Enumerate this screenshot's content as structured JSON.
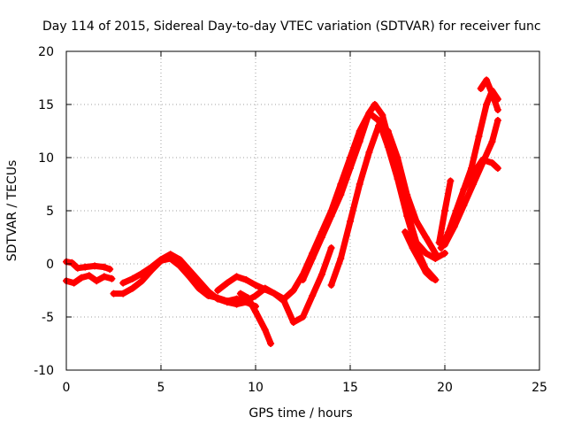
{
  "chart_data": {
    "type": "scatter",
    "title": "Day 114 of 2015, Sidereal Day-to-day VTEC variation (SDTVAR) for receiver func",
    "xlabel": "GPS time / hours",
    "ylabel": "SDTVAR / TECUs",
    "xlim": [
      0,
      25
    ],
    "ylim": [
      -10,
      20
    ],
    "x_ticks": [
      0,
      5,
      10,
      15,
      20,
      25
    ],
    "y_ticks": [
      -10,
      -5,
      0,
      5,
      10,
      15,
      20
    ],
    "x_tick_labels": [
      "0",
      "5",
      "10",
      "15",
      "20",
      "25"
    ],
    "y_tick_labels": [
      "-10",
      "-5",
      "0",
      "5",
      "10",
      "15",
      "20"
    ],
    "grid": true,
    "marker": "plus",
    "series_color": "#ff0000",
    "series": [
      {
        "x": [
          0.0,
          0.3,
          0.6,
          1.0,
          1.5,
          2.0,
          2.3
        ],
        "y": [
          0.2,
          0.1,
          -0.4,
          -0.3,
          -0.2,
          -0.3,
          -0.5
        ]
      },
      {
        "x": [
          0.0,
          0.4,
          0.8,
          1.2,
          1.6,
          2.0,
          2.4
        ],
        "y": [
          -1.6,
          -1.8,
          -1.3,
          -1.1,
          -1.6,
          -1.2,
          -1.4
        ]
      },
      {
        "x": [
          2.5,
          3.0,
          3.5,
          4.0,
          4.5,
          5.0,
          5.5,
          6.0,
          6.5,
          7.0,
          7.5,
          8.0,
          8.5,
          9.0,
          9.5
        ],
        "y": [
          -2.8,
          -2.8,
          -2.3,
          -1.6,
          -0.6,
          0.3,
          0.5,
          -0.2,
          -1.2,
          -2.3,
          -3.0,
          -3.2,
          -3.5,
          -3.3,
          -3.5
        ]
      },
      {
        "x": [
          3.0,
          3.5,
          4.0,
          4.5,
          5.0,
          5.5,
          6.0,
          6.5,
          7.0,
          7.5,
          8.0,
          8.5,
          9.0,
          9.5,
          10.0
        ],
        "y": [
          -1.8,
          -1.4,
          -0.9,
          -0.3,
          0.4,
          0.9,
          0.4,
          -0.6,
          -1.6,
          -2.6,
          -3.3,
          -3.6,
          -3.8,
          -3.6,
          -4.0
        ]
      },
      {
        "x": [
          8.0,
          8.5,
          9.0,
          9.5,
          10.0,
          10.5,
          11.0,
          11.5,
          12.0,
          12.5,
          13.0,
          13.5,
          14.0,
          14.5,
          15.0,
          15.5,
          16.0,
          16.5,
          17.0,
          17.5,
          18.0,
          18.5,
          19.0,
          19.5
        ],
        "y": [
          -2.5,
          -1.8,
          -1.2,
          -1.5,
          -2.0,
          -2.4,
          -2.8,
          -3.3,
          -2.5,
          -1.0,
          1.0,
          3.0,
          5.0,
          7.5,
          10.0,
          12.5,
          14.2,
          13.5,
          11.0,
          8.0,
          4.5,
          1.5,
          -0.5,
          -1.5
        ]
      },
      {
        "x": [
          9.2,
          9.6,
          10.0,
          10.5,
          10.8
        ],
        "y": [
          -2.8,
          -3.2,
          -4.5,
          -6.2,
          -7.5
        ]
      },
      {
        "x": [
          9.5,
          10.0,
          10.5,
          11.0,
          11.5,
          12.0,
          12.5,
          13.0,
          13.5,
          14.0
        ],
        "y": [
          -3.5,
          -3.0,
          -2.3,
          -2.8,
          -3.5,
          -5.5,
          -5.0,
          -3.0,
          -1.0,
          1.5
        ]
      },
      {
        "x": [
          12.5,
          13.0,
          13.5,
          14.0,
          14.5,
          15.0,
          15.5,
          16.0,
          16.3,
          16.7,
          17.0,
          17.5,
          18.0,
          18.5,
          19.0,
          19.5,
          20.0
        ],
        "y": [
          -1.5,
          0.5,
          2.5,
          4.5,
          6.5,
          9.0,
          11.5,
          14.2,
          15.0,
          14.0,
          12.0,
          9.0,
          5.0,
          2.0,
          1.0,
          0.5,
          1.0
        ]
      },
      {
        "x": [
          14.0,
          14.5,
          15.0,
          15.5,
          16.0,
          16.5,
          17.0,
          17.5,
          18.0,
          18.5,
          19.0,
          19.5
        ],
        "y": [
          -2.0,
          0.5,
          4.0,
          7.5,
          10.5,
          13.0,
          12.5,
          10.0,
          6.5,
          4.0,
          2.5,
          1.0
        ]
      },
      {
        "x": [
          17.9,
          18.3,
          18.7,
          19.0,
          19.3,
          19.5
        ],
        "y": [
          3.0,
          1.5,
          0.2,
          -0.8,
          -1.3,
          -1.5
        ]
      },
      {
        "x": [
          19.8,
          20.2,
          20.6,
          21.0,
          21.4,
          21.8,
          22.2,
          22.5,
          22.8
        ],
        "y": [
          1.5,
          3.0,
          5.0,
          7.0,
          9.0,
          12.0,
          15.0,
          16.3,
          15.5
        ]
      },
      {
        "x": [
          19.7,
          20.0,
          20.3
        ],
        "y": [
          2.0,
          5.0,
          7.8
        ]
      },
      {
        "x": [
          20.0,
          20.5,
          21.0,
          21.5,
          22.0,
          22.5,
          22.8
        ],
        "y": [
          1.8,
          3.5,
          5.5,
          7.5,
          9.5,
          11.5,
          13.5
        ]
      },
      {
        "x": [
          21.0,
          21.5,
          22.0,
          22.5,
          22.8
        ],
        "y": [
          7.0,
          8.5,
          9.8,
          9.5,
          9.0
        ]
      },
      {
        "x": [
          21.9,
          22.2,
          22.5,
          22.8
        ],
        "y": [
          16.5,
          17.3,
          16.0,
          14.5
        ]
      }
    ]
  }
}
